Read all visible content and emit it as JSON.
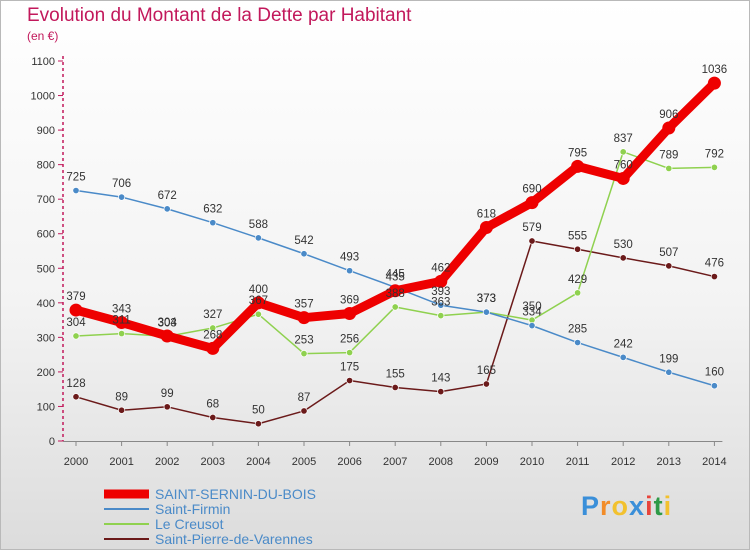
{
  "title": "Evolution du Montant de la Dette par Habitant",
  "unit": "(en €)",
  "logo": "Proxiti",
  "chart_data": {
    "type": "line",
    "title": "Evolution du Montant de la Dette par Habitant",
    "ylabel": "(en €)",
    "xlabel": "",
    "ylim": [
      0,
      1100
    ],
    "yticks": [
      0,
      100,
      200,
      300,
      400,
      500,
      600,
      700,
      800,
      900,
      1000,
      1100
    ],
    "grid": false,
    "legend_position": "bottom-left",
    "categories": [
      "2000",
      "2001",
      "2002",
      "2003",
      "2004",
      "2005",
      "2006",
      "2007",
      "2008",
      "2009",
      "2010",
      "2011",
      "2012",
      "2013",
      "2014"
    ],
    "series": [
      {
        "name": "SAINT-SERNIN-DU-BOIS",
        "color": "#ee0000",
        "values": [
          379,
          343,
          304,
          268,
          400,
          357,
          369,
          435,
          462,
          618,
          690,
          795,
          760,
          906,
          1036
        ]
      },
      {
        "name": "Saint-Firmin",
        "color": "#4a8ac8",
        "values": [
          725,
          706,
          672,
          632,
          588,
          542,
          493,
          445,
          393,
          373,
          334,
          285,
          242,
          199,
          160
        ]
      },
      {
        "name": "Le Creusot",
        "color": "#8fd14f",
        "values": [
          304,
          311,
          303,
          327,
          367,
          253,
          256,
          388,
          363,
          373,
          350,
          429,
          837,
          789,
          792
        ]
      },
      {
        "name": "Saint-Pierre-de-Varennes",
        "color": "#6b1a1a",
        "values": [
          128,
          89,
          99,
          68,
          50,
          87,
          175,
          155,
          143,
          165,
          579,
          555,
          530,
          507,
          476
        ]
      }
    ]
  }
}
